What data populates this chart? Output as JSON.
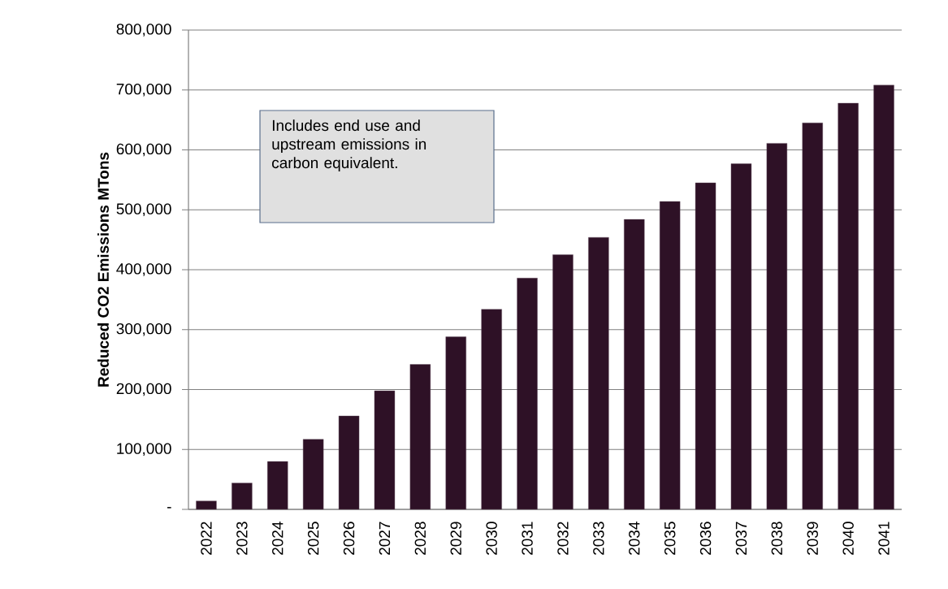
{
  "chart_data": {
    "type": "bar",
    "ylabel": "Reduced CO2 Emissions MTons",
    "categories": [
      "2022",
      "2023",
      "2024",
      "2025",
      "2026",
      "2027",
      "2028",
      "2029",
      "2030",
      "2031",
      "2032",
      "2033",
      "2034",
      "2035",
      "2036",
      "2037",
      "2038",
      "2039",
      "2040",
      "2041"
    ],
    "values": [
      14000,
      44000,
      80000,
      117000,
      156000,
      198000,
      242000,
      288000,
      334000,
      386000,
      425000,
      454000,
      484000,
      514000,
      545000,
      577000,
      611000,
      645000,
      678000,
      708000
    ],
    "color": "#2e1126",
    "ylim": [
      0,
      800000
    ],
    "yticks": [
      {
        "value": 0,
        "label": "-"
      },
      {
        "value": 100000,
        "label": "100,000"
      },
      {
        "value": 200000,
        "label": "200,000"
      },
      {
        "value": 300000,
        "label": "300,000"
      },
      {
        "value": 400000,
        "label": "400,000"
      },
      {
        "value": 500000,
        "label": "500,000"
      },
      {
        "value": 600000,
        "label": "600,000"
      },
      {
        "value": 700000,
        "label": "700,000"
      },
      {
        "value": 800000,
        "label": "800,000"
      }
    ],
    "grid": "y",
    "annotations": [
      "Includes end use and upstream emissions in carbon equivalent."
    ]
  }
}
